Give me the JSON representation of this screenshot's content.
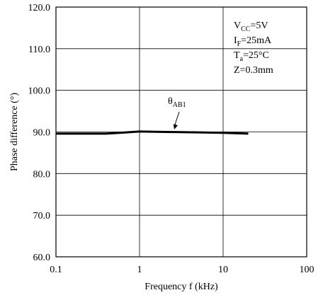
{
  "chart_data": {
    "type": "line",
    "xlabel": "Frequency f (kHz)",
    "ylabel": "Phase difference (°)",
    "x_scale": "log",
    "xlim": [
      0.1,
      100
    ],
    "ylim": [
      60,
      120
    ],
    "x_ticks": [
      0.1,
      1,
      10,
      100
    ],
    "x_tick_labels": [
      "0.1",
      "1",
      "10",
      "100"
    ],
    "y_ticks": [
      60,
      70,
      80,
      90,
      100,
      110,
      120
    ],
    "y_tick_labels": [
      "60.0",
      "70.0",
      "80.0",
      "90.0",
      "100.0",
      "110.0",
      "120.0"
    ],
    "grid": true,
    "series": [
      {
        "name": "θAB1",
        "label_main": "θ",
        "label_sub": "AB1",
        "x": [
          0.1,
          0.2,
          0.4,
          0.7,
          1,
          2,
          5,
          10,
          20
        ],
        "y": [
          89.6,
          89.6,
          89.6,
          89.9,
          90.1,
          90.0,
          89.9,
          89.8,
          89.6
        ]
      }
    ],
    "conditions": [
      {
        "main": "V",
        "sub": "CC",
        "rest": "=5V"
      },
      {
        "main": "I",
        "sub": "F",
        "rest": "=25mA"
      },
      {
        "main": "T",
        "sub": "a",
        "rest": "=25°C"
      },
      {
        "main": "Z=0.3mm",
        "sub": "",
        "rest": ""
      }
    ]
  }
}
